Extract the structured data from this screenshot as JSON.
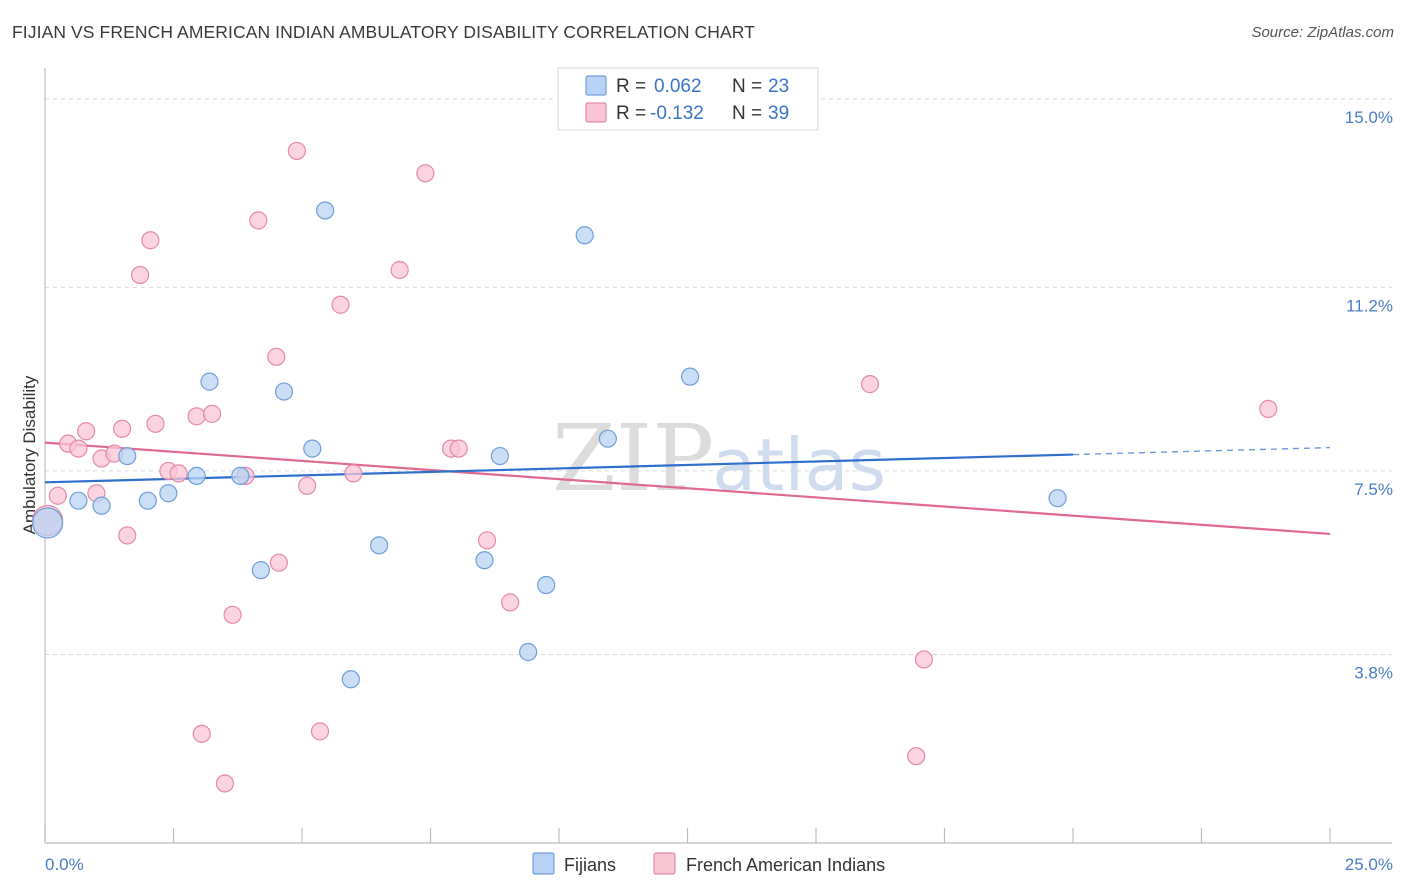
{
  "header": {
    "title": "FIJIAN VS FRENCH AMERICAN INDIAN AMBULATORY DISABILITY CORRELATION CHART",
    "source": "Source: ZipAtlas.com"
  },
  "watermark": {
    "zip": "ZIP",
    "atlas": "atlas"
  },
  "colors": {
    "blue_fill": "#b8d3f3",
    "blue_stroke": "#6f9fd8",
    "blue_line": "#2e6fcc",
    "pink_fill": "#f9c6d6",
    "pink_stroke": "#e48aa8",
    "pink_line": "#e0698f",
    "grid": "#d9d9d9",
    "tick_text": "#4a7cc4"
  },
  "legend": {
    "rows": [
      {
        "r_label": "R = ",
        "r_value": "0.062",
        "n_label": "N = ",
        "n_value": "23"
      },
      {
        "r_label": "R = ",
        "r_value": "-0.132",
        "n_label": "N = ",
        "n_value": "39"
      }
    ]
  },
  "bottom_legend": {
    "items": [
      "Fijians",
      "French American Indians"
    ]
  },
  "chart_data": {
    "type": "scatter",
    "title": "FIJIAN VS FRENCH AMERICAN INDIAN AMBULATORY DISABILITY CORRELATION CHART",
    "xlabel": "",
    "ylabel": "Ambulatory Disability",
    "xlim": [
      0,
      25
    ],
    "ylim": [
      0,
      15.4
    ],
    "x_tick_labels": [
      "0.0%",
      "25.0%"
    ],
    "y_ticks": [
      3.8,
      7.5,
      11.2,
      15.0
    ],
    "y_tick_labels": [
      "3.8%",
      "7.5%",
      "11.2%",
      "15.0%"
    ],
    "grid": true,
    "legend_position": "top-center",
    "series": [
      {
        "name": "Fijians",
        "color": "#b8d3f3",
        "trend": {
          "x0": 0,
          "y0": 7.27,
          "x1": 20,
          "y1": 7.83,
          "dashed_to_x": 25,
          "dashed_to_y": 7.97
        },
        "points": [
          {
            "x": 0.05,
            "y": 6.45,
            "big": true
          },
          {
            "x": 0.65,
            "y": 6.9
          },
          {
            "x": 1.1,
            "y": 6.8
          },
          {
            "x": 1.6,
            "y": 7.8
          },
          {
            "x": 2.0,
            "y": 6.9
          },
          {
            "x": 2.4,
            "y": 7.05
          },
          {
            "x": 2.95,
            "y": 7.4
          },
          {
            "x": 3.2,
            "y": 9.3
          },
          {
            "x": 3.8,
            "y": 7.4
          },
          {
            "x": 4.2,
            "y": 5.5
          },
          {
            "x": 4.65,
            "y": 9.1
          },
          {
            "x": 5.2,
            "y": 7.95
          },
          {
            "x": 5.45,
            "y": 12.75
          },
          {
            "x": 5.95,
            "y": 3.3
          },
          {
            "x": 6.5,
            "y": 6.0
          },
          {
            "x": 8.55,
            "y": 5.7
          },
          {
            "x": 8.85,
            "y": 7.8
          },
          {
            "x": 9.4,
            "y": 3.85
          },
          {
            "x": 9.75,
            "y": 5.2
          },
          {
            "x": 10.5,
            "y": 12.25
          },
          {
            "x": 10.95,
            "y": 8.15
          },
          {
            "x": 12.55,
            "y": 9.4
          },
          {
            "x": 19.7,
            "y": 6.95
          }
        ]
      },
      {
        "name": "French American Indians",
        "color": "#f9c6d6",
        "trend": {
          "x0": 0,
          "y0": 8.07,
          "x1": 25,
          "y1": 6.23
        },
        "points": [
          {
            "x": 0.05,
            "y": 6.5,
            "big": true
          },
          {
            "x": 0.25,
            "y": 7.0
          },
          {
            "x": 0.45,
            "y": 8.05
          },
          {
            "x": 0.65,
            "y": 7.95
          },
          {
            "x": 0.8,
            "y": 8.3
          },
          {
            "x": 1.0,
            "y": 7.05
          },
          {
            "x": 1.1,
            "y": 7.75
          },
          {
            "x": 1.35,
            "y": 7.85
          },
          {
            "x": 1.5,
            "y": 8.35
          },
          {
            "x": 1.6,
            "y": 6.2
          },
          {
            "x": 1.85,
            "y": 11.45
          },
          {
            "x": 2.05,
            "y": 12.15
          },
          {
            "x": 2.15,
            "y": 8.45
          },
          {
            "x": 2.4,
            "y": 7.5
          },
          {
            "x": 2.6,
            "y": 7.45
          },
          {
            "x": 2.95,
            "y": 8.6
          },
          {
            "x": 3.05,
            "y": 2.2
          },
          {
            "x": 3.25,
            "y": 8.65
          },
          {
            "x": 3.5,
            "y": 1.2
          },
          {
            "x": 3.65,
            "y": 4.6
          },
          {
            "x": 3.9,
            "y": 7.4
          },
          {
            "x": 4.15,
            "y": 12.55
          },
          {
            "x": 4.5,
            "y": 9.8
          },
          {
            "x": 4.55,
            "y": 5.65
          },
          {
            "x": 4.9,
            "y": 13.95
          },
          {
            "x": 5.1,
            "y": 7.2
          },
          {
            "x": 5.35,
            "y": 2.25
          },
          {
            "x": 5.75,
            "y": 10.85
          },
          {
            "x": 6.0,
            "y": 7.45
          },
          {
            "x": 6.9,
            "y": 11.55
          },
          {
            "x": 7.4,
            "y": 13.5
          },
          {
            "x": 7.9,
            "y": 7.95
          },
          {
            "x": 8.05,
            "y": 7.95
          },
          {
            "x": 8.6,
            "y": 6.1
          },
          {
            "x": 9.05,
            "y": 4.85
          },
          {
            "x": 16.05,
            "y": 9.25
          },
          {
            "x": 16.95,
            "y": 1.75
          },
          {
            "x": 17.1,
            "y": 3.7
          },
          {
            "x": 23.8,
            "y": 8.75
          }
        ]
      }
    ]
  }
}
